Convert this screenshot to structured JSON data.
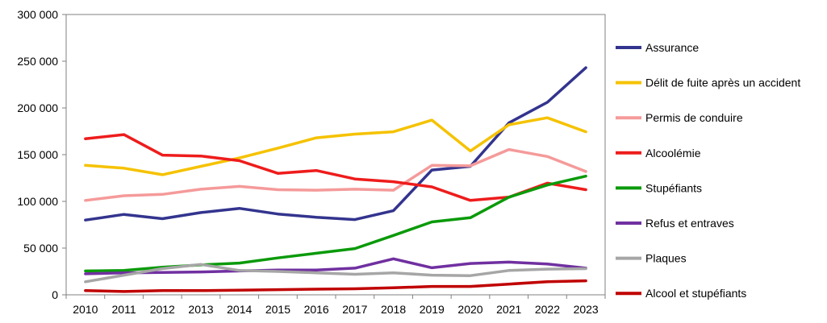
{
  "chart_data": {
    "type": "line",
    "title": "",
    "xlabel": "",
    "ylabel": "",
    "x": [
      "2010",
      "2011",
      "2012",
      "2013",
      "2014",
      "2015",
      "2016",
      "2017",
      "2018",
      "2019",
      "2020",
      "2021",
      "2022",
      "2023"
    ],
    "ylim": [
      0,
      300000
    ],
    "yticks": [
      0,
      50000,
      100000,
      150000,
      200000,
      250000,
      300000
    ],
    "ytick_labels": [
      "0",
      "50 000",
      "100 000",
      "150 000",
      "200 000",
      "250 000",
      "300 000"
    ],
    "grid": false,
    "legend_position": "right",
    "series": [
      {
        "name": "Assurance",
        "color": "#33348e",
        "values": [
          80000,
          86000,
          81500,
          88000,
          92500,
          86500,
          83000,
          80500,
          90000,
          133500,
          137500,
          184000,
          206000,
          243000
        ]
      },
      {
        "name": "Délit de fuite après un accident",
        "color": "#f5c200",
        "values": [
          138500,
          135500,
          128500,
          137500,
          146500,
          157000,
          168000,
          172000,
          174500,
          187000,
          154000,
          182000,
          189500,
          174500
        ]
      },
      {
        "name": "Permis de conduire",
        "color": "#f59a9a",
        "values": [
          101000,
          106000,
          107500,
          113000,
          116000,
          112500,
          112000,
          113000,
          112000,
          138500,
          138000,
          155500,
          148000,
          132000
        ]
      },
      {
        "name": "Alcoolémie",
        "color": "#ee1c1c",
        "values": [
          167000,
          171500,
          149500,
          148500,
          143500,
          130000,
          133000,
          124000,
          121000,
          115500,
          101000,
          104500,
          119500,
          112500
        ]
      },
      {
        "name": "Stupéfiants",
        "color": "#0a9a0a",
        "values": [
          25500,
          26000,
          29500,
          32000,
          34000,
          39500,
          44500,
          49500,
          63500,
          78000,
          82500,
          104500,
          117500,
          127000
        ]
      },
      {
        "name": "Refus et entraves",
        "color": "#7030a0",
        "values": [
          22500,
          23500,
          24000,
          24500,
          25500,
          26500,
          26500,
          28500,
          38500,
          29000,
          33500,
          35000,
          33000,
          28500
        ]
      },
      {
        "name": "Plaques",
        "color": "#a6a6a6",
        "values": [
          14000,
          21000,
          28000,
          32500,
          26000,
          25000,
          23500,
          22000,
          23500,
          21000,
          20500,
          26000,
          27500,
          28000
        ]
      },
      {
        "name": "Alcool et stupéfiants",
        "color": "#c00000",
        "values": [
          4500,
          3500,
          4500,
          4500,
          5000,
          5500,
          6000,
          6500,
          7500,
          9000,
          9000,
          11500,
          14000,
          15000
        ]
      }
    ]
  }
}
